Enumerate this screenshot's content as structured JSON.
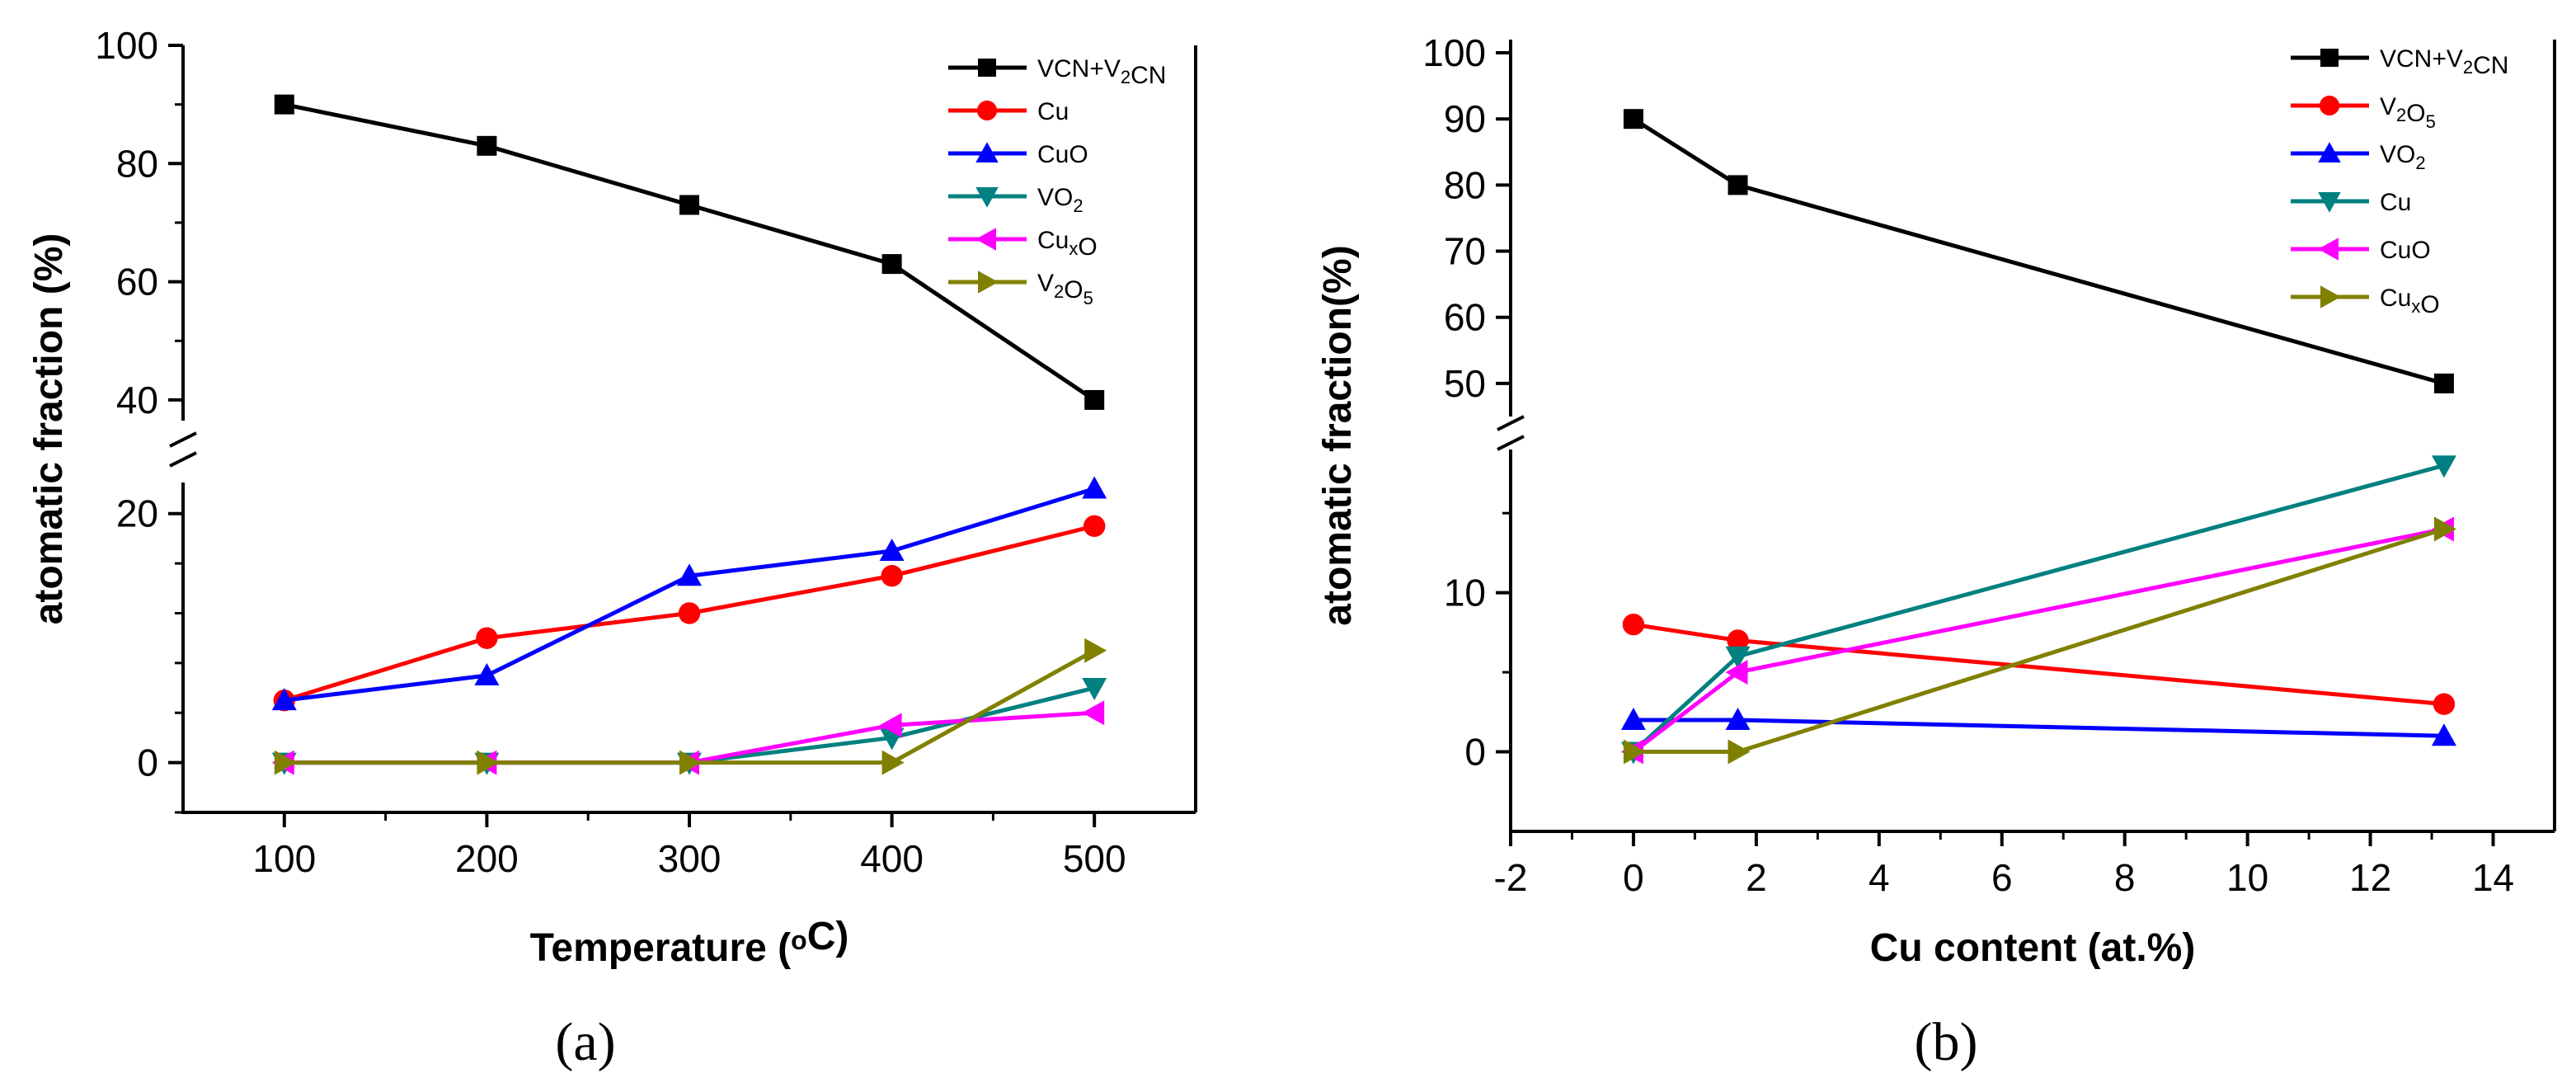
{
  "chart_data": [
    {
      "type": "line",
      "panel_label": "(a)",
      "xlabel": "Temperature (°C)",
      "xlabel_parts": {
        "pre": "Temperature (",
        "sup": "o",
        "post": "C)"
      },
      "ylabel": "atomatic fraction (%)",
      "xlim": [
        50,
        550
      ],
      "ylim_lower": [
        -4,
        22.5
      ],
      "ylim_upper": [
        36.5,
        100
      ],
      "axis_break": true,
      "x": [
        100,
        200,
        300,
        400,
        500
      ],
      "x_ticks": [
        "100",
        "200",
        "300",
        "400",
        "500"
      ],
      "y_ticks_lower": [
        "0",
        "20"
      ],
      "y_ticks_upper": [
        "40",
        "60",
        "80",
        "100"
      ],
      "series": [
        {
          "name": "VCN+V2CN",
          "label_parts": [
            [
              "VCN+V",
              ""
            ],
            [
              "2",
              "sub"
            ],
            [
              "CN",
              ""
            ]
          ],
          "color": "#000000",
          "marker": "square",
          "values": [
            90,
            83,
            73,
            63,
            40
          ]
        },
        {
          "name": "Cu",
          "label_parts": [
            [
              "Cu",
              ""
            ]
          ],
          "color": "#ff0000",
          "marker": "circle",
          "values": [
            5,
            10,
            12,
            15,
            19
          ]
        },
        {
          "name": "CuO",
          "label_parts": [
            [
              "CuO",
              ""
            ]
          ],
          "color": "#0000ff",
          "marker": "triangle-up",
          "values": [
            5,
            7,
            15,
            17,
            22
          ]
        },
        {
          "name": "VO2",
          "label_parts": [
            [
              "VO",
              ""
            ],
            [
              "2",
              "sub"
            ]
          ],
          "color": "#008080",
          "marker": "triangle-down",
          "values": [
            0,
            0,
            0,
            2,
            6
          ]
        },
        {
          "name": "CuxO",
          "label_parts": [
            [
              "Cu",
              ""
            ],
            [
              "x",
              "sub"
            ],
            [
              "O",
              ""
            ]
          ],
          "color": "#ff00ff",
          "marker": "triangle-left",
          "values": [
            0,
            0,
            0,
            3,
            4
          ]
        },
        {
          "name": "V2O5",
          "label_parts": [
            [
              "V",
              ""
            ],
            [
              "2",
              "sub"
            ],
            [
              "O",
              ""
            ],
            [
              "5",
              "sub"
            ]
          ],
          "color": "#808000",
          "marker": "triangle-right",
          "values": [
            0,
            0,
            0,
            0,
            9
          ]
        }
      ]
    },
    {
      "type": "line",
      "panel_label": "(b)",
      "xlabel": "Cu content (at.%)",
      "xlabel_parts": {
        "pre": "Cu content (at.%)",
        "sup": "",
        "post": ""
      },
      "ylabel": "atomatic fraction(%)",
      "xlim": [
        -2,
        15
      ],
      "ylim_lower": [
        -5,
        19
      ],
      "ylim_upper": [
        45,
        102
      ],
      "axis_break": true,
      "x": [
        0,
        1.7,
        13.2
      ],
      "x_ticks": [
        "-2",
        "0",
        "2",
        "4",
        "6",
        "8",
        "10",
        "12",
        "14"
      ],
      "y_ticks_lower": [
        "0",
        "10"
      ],
      "y_ticks_upper": [
        "50",
        "60",
        "70",
        "80",
        "90",
        "100"
      ],
      "series": [
        {
          "name": "VCN+V2CN",
          "label_parts": [
            [
              "VCN+V",
              ""
            ],
            [
              "2",
              "sub"
            ],
            [
              "CN",
              ""
            ]
          ],
          "color": "#000000",
          "marker": "square",
          "values": [
            90,
            80,
            50
          ]
        },
        {
          "name": "V2O5",
          "label_parts": [
            [
              "V",
              ""
            ],
            [
              "2",
              "sub"
            ],
            [
              "O",
              ""
            ],
            [
              "5",
              "sub"
            ]
          ],
          "color": "#ff0000",
          "marker": "circle",
          "values": [
            8,
            7,
            3
          ]
        },
        {
          "name": "VO2",
          "label_parts": [
            [
              "VO",
              ""
            ],
            [
              "2",
              "sub"
            ]
          ],
          "color": "#0000ff",
          "marker": "triangle-up",
          "values": [
            2,
            2,
            1
          ]
        },
        {
          "name": "Cu",
          "label_parts": [
            [
              "Cu",
              ""
            ]
          ],
          "color": "#008080",
          "marker": "triangle-down",
          "values": [
            0,
            6,
            18
          ]
        },
        {
          "name": "CuO",
          "label_parts": [
            [
              "CuO",
              ""
            ]
          ],
          "color": "#ff00ff",
          "marker": "triangle-left",
          "values": [
            0,
            5,
            14
          ]
        },
        {
          "name": "CuxO",
          "label_parts": [
            [
              "Cu",
              ""
            ],
            [
              "x",
              "sub"
            ],
            [
              "O",
              ""
            ]
          ],
          "color": "#808000",
          "marker": "triangle-right",
          "values": [
            0,
            0,
            14
          ]
        }
      ]
    }
  ]
}
